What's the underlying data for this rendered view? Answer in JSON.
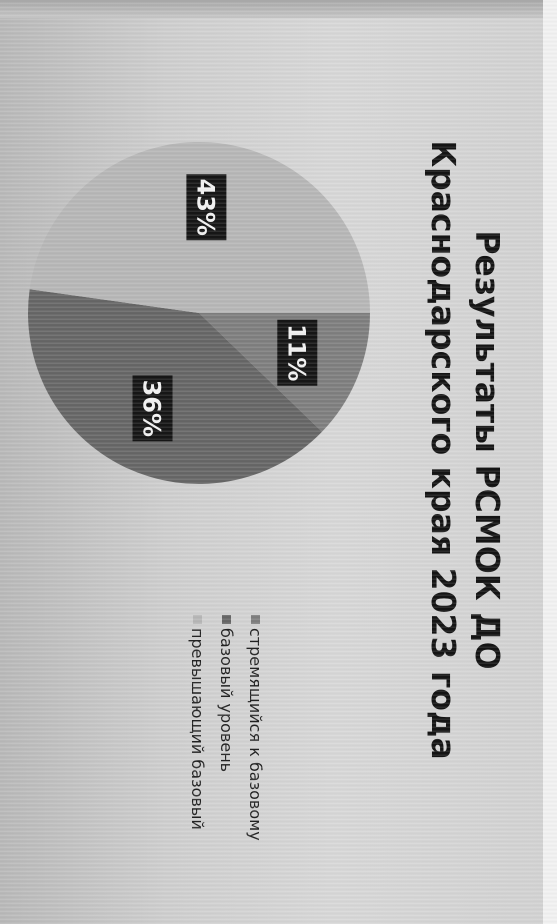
{
  "chart_data": {
    "type": "pie",
    "title_lines": [
      "Результаты РСМОК ДО",
      "Краснодарского края 2023 года"
    ],
    "slices": [
      {
        "label": "стремящийся к базовому",
        "value": 11,
        "display": "11%",
        "color": "#7f7f7f"
      },
      {
        "label": "базовый уровень",
        "value": 36,
        "display": "36%",
        "color": "#676767"
      },
      {
        "label": "превышающий базовый",
        "value": 43,
        "display": "43%",
        "color": "#b7b7b7"
      }
    ],
    "legend_placement": "right"
  }
}
